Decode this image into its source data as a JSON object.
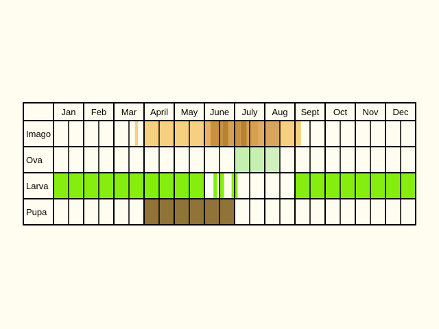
{
  "chart_data": {
    "type": "table",
    "columns": [
      "Jan",
      "Feb",
      "Mar",
      "April",
      "May",
      "June",
      "July",
      "Aug",
      "Sept",
      "Oct",
      "Nov",
      "Dec"
    ],
    "subdivisions_per_month": 2,
    "rows": [
      {
        "label": "Imago",
        "periods": [
          {
            "start": 5.4,
            "end": 5.6,
            "color": "#f5d080"
          },
          {
            "start": 6.0,
            "end": 10.0,
            "color": "#f5d080"
          },
          {
            "start": 10.0,
            "end": 10.4,
            "color": "#e8b060"
          },
          {
            "start": 10.4,
            "end": 11.2,
            "color": "#c99040"
          },
          {
            "start": 11.2,
            "end": 11.6,
            "color": "#b78130"
          },
          {
            "start": 11.6,
            "end": 12.0,
            "color": "#d6a050"
          },
          {
            "start": 12.0,
            "end": 12.4,
            "color": "#c99040"
          },
          {
            "start": 12.4,
            "end": 12.8,
            "color": "#b78130"
          },
          {
            "start": 12.8,
            "end": 13.6,
            "color": "#d6a050"
          },
          {
            "start": 13.6,
            "end": 14.0,
            "color": "#e0aa60"
          },
          {
            "start": 14.0,
            "end": 15.0,
            "color": "#d8a55c"
          },
          {
            "start": 15.0,
            "end": 16.4,
            "color": "#f5d080"
          }
        ]
      },
      {
        "label": "Ova",
        "periods": [
          {
            "start": 12.0,
            "end": 14.0,
            "color": "#c6f0b0"
          },
          {
            "start": 14.0,
            "end": 15.0,
            "color": "#d0f0c0"
          }
        ]
      },
      {
        "label": "Larva",
        "periods": [
          {
            "start": 0.0,
            "end": 10.0,
            "color": "#86ee0e"
          },
          {
            "start": 10.6,
            "end": 10.85,
            "color": "#86ee0e"
          },
          {
            "start": 11.0,
            "end": 11.3,
            "color": "#86ee0e"
          },
          {
            "start": 11.8,
            "end": 12.2,
            "color": "#86ee0e"
          },
          {
            "start": 16.0,
            "end": 24.0,
            "color": "#86ee0e"
          }
        ]
      },
      {
        "label": "Pupa",
        "periods": [
          {
            "start": 6.0,
            "end": 12.0,
            "color": "#8f7338"
          }
        ]
      }
    ]
  }
}
